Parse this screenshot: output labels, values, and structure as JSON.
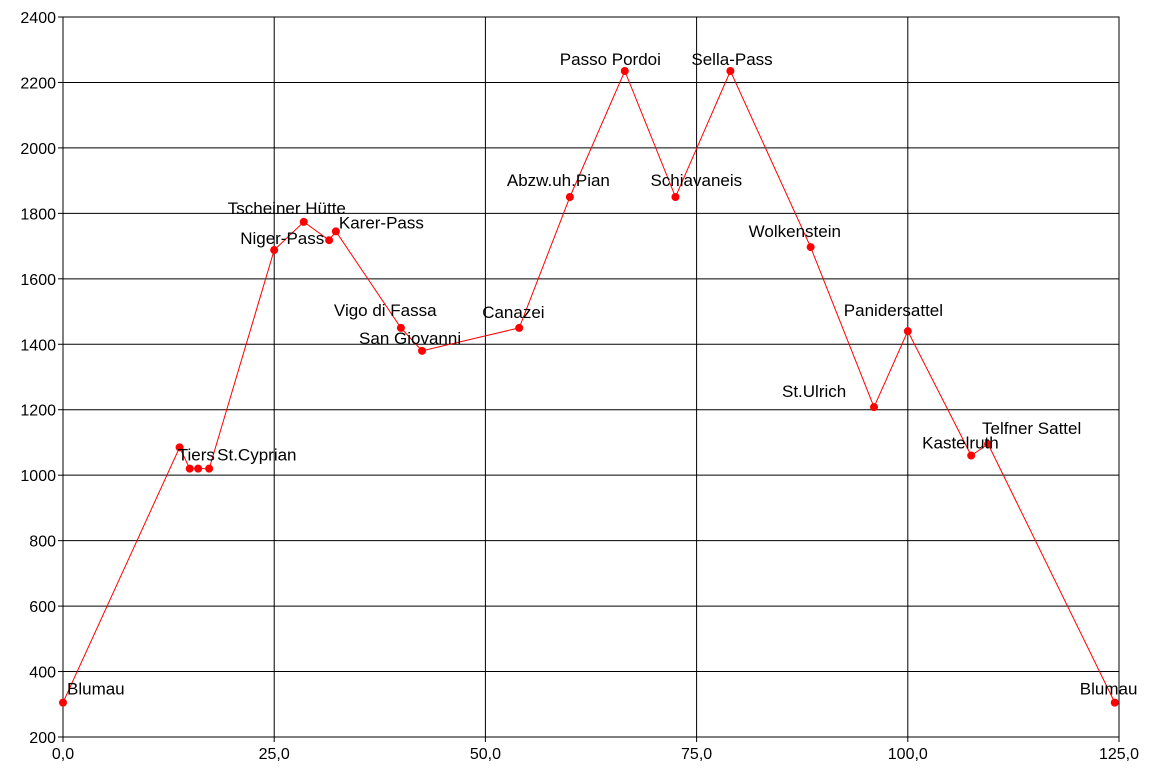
{
  "chart_data": {
    "type": "scatter",
    "title": "",
    "xlabel": "",
    "ylabel": "",
    "xlim": [
      0,
      125
    ],
    "ylim": [
      200,
      2400
    ],
    "grid": true,
    "x_ticks": [
      0,
      25,
      50,
      75,
      100,
      125
    ],
    "x_tick_labels": [
      "0,0",
      "25,0",
      "50,0",
      "75,0",
      "100,0",
      "125,0"
    ],
    "y_ticks": [
      200,
      400,
      600,
      800,
      1000,
      1200,
      1400,
      1600,
      1800,
      2000,
      2200,
      2400
    ],
    "y_tick_labels": [
      "200",
      "400",
      "600",
      "800",
      "1000",
      "1200",
      "1400",
      "1600",
      "1800",
      "2000",
      "2200",
      "2400"
    ],
    "series": [
      {
        "color": "#ff0000",
        "points": [
          {
            "x": 0,
            "y": 305,
            "label": "Blumau"
          },
          {
            "x": 13.8,
            "y": 1085,
            "label": ""
          },
          {
            "x": 15,
            "y": 1020,
            "label": "Tiers"
          },
          {
            "x": 16,
            "y": 1020,
            "label": ""
          },
          {
            "x": 17.3,
            "y": 1020,
            "label": "St.Cyprian"
          },
          {
            "x": 25,
            "y": 1688,
            "label": "Niger-Pass"
          },
          {
            "x": 28.5,
            "y": 1774,
            "label": "Tscheiner Hütte"
          },
          {
            "x": 31.5,
            "y": 1718,
            "label": ""
          },
          {
            "x": 32.3,
            "y": 1745,
            "label": "Karer-Pass"
          },
          {
            "x": 40,
            "y": 1450,
            "label": "Vigo di Fassa"
          },
          {
            "x": 42.5,
            "y": 1380,
            "label": "San Giovanni"
          },
          {
            "x": 54,
            "y": 1450,
            "label": "Canazei"
          },
          {
            "x": 60,
            "y": 1850,
            "label": "Abzw.uh.Pian"
          },
          {
            "x": 66.5,
            "y": 2235,
            "label": "Passo Pordoi"
          },
          {
            "x": 72.5,
            "y": 1850,
            "label": "Schiavaneis"
          },
          {
            "x": 79,
            "y": 2235,
            "label": "Sella-Pass"
          },
          {
            "x": 88.5,
            "y": 1697,
            "label": "Wolkenstein"
          },
          {
            "x": 96,
            "y": 1208,
            "label": "St.Ulrich"
          },
          {
            "x": 100,
            "y": 1440,
            "label": "Panidersattel"
          },
          {
            "x": 107.5,
            "y": 1060,
            "label": "Kastelruth"
          },
          {
            "x": 109.5,
            "y": 1095,
            "label": "Telfner Sattel"
          },
          {
            "x": 124.5,
            "y": 305,
            "label": "Blumau"
          }
        ]
      }
    ]
  }
}
